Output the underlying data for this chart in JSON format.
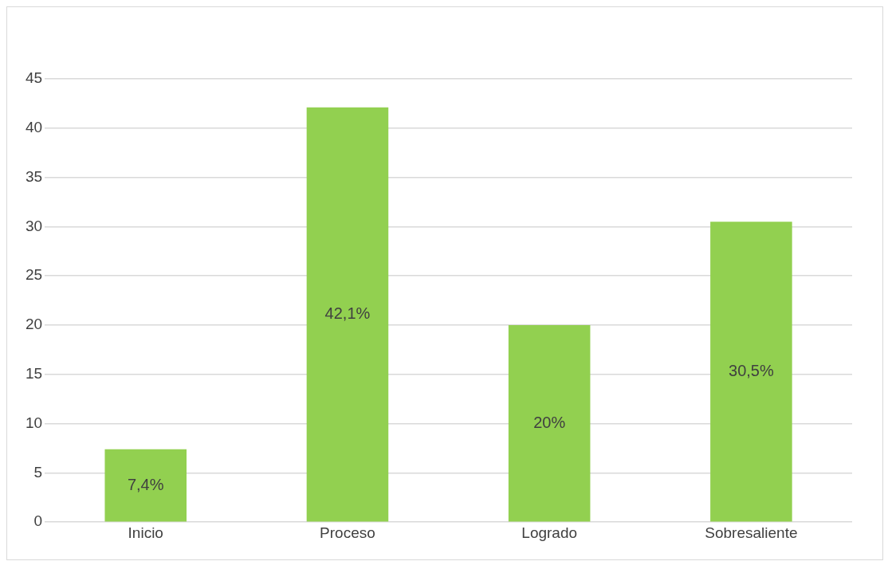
{
  "chart_data": {
    "type": "bar",
    "categories": [
      "Inicio",
      "Proceso",
      "Logrado",
      "Sobresaliente"
    ],
    "values": [
      7.4,
      42.1,
      20,
      30.5
    ],
    "value_labels": [
      "7,4%",
      "42,1%",
      "20%",
      "30,5%"
    ],
    "color": "#92d050",
    "ylim": [
      0,
      45
    ],
    "yticks": [
      0,
      5,
      10,
      15,
      20,
      25,
      30,
      35,
      40,
      45
    ],
    "grid": "y",
    "legend": false
  }
}
